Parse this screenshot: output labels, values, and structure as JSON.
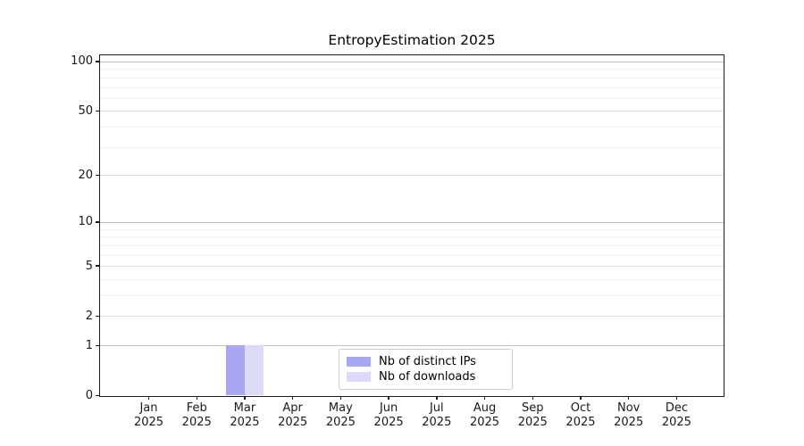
{
  "chart_data": {
    "type": "bar",
    "title": "EntropyEstimation 2025",
    "categories": [
      "Jan",
      "Feb",
      "Mar",
      "Apr",
      "May",
      "Jun",
      "Jul",
      "Aug",
      "Sep",
      "Oct",
      "Nov",
      "Dec"
    ],
    "category_year": "2025",
    "series": [
      {
        "name": "Nb of distinct IPs",
        "color": "#a9a7f2",
        "values": [
          0,
          0,
          1,
          0,
          0,
          0,
          0,
          0,
          0,
          0,
          0,
          0
        ]
      },
      {
        "name": "Nb of downloads",
        "color": "#dcdaf8",
        "values": [
          0,
          0,
          1,
          0,
          0,
          0,
          0,
          0,
          0,
          0,
          0,
          0
        ]
      }
    ],
    "yscale": "log1p",
    "ylim": [
      0,
      109
    ],
    "ytick_values": [
      0,
      1,
      2,
      5,
      10,
      20,
      50,
      100
    ],
    "ytick_minor_values": [
      3,
      4,
      6,
      7,
      8,
      9,
      30,
      40,
      60,
      70,
      80,
      90
    ],
    "grid": true,
    "legend_position": "lower center"
  },
  "colors": {
    "grid_decade": "#c0c0c0",
    "grid_labeled": "#e0e0e0",
    "grid_minor": "#efefef",
    "axis": "#1a1a1a"
  }
}
